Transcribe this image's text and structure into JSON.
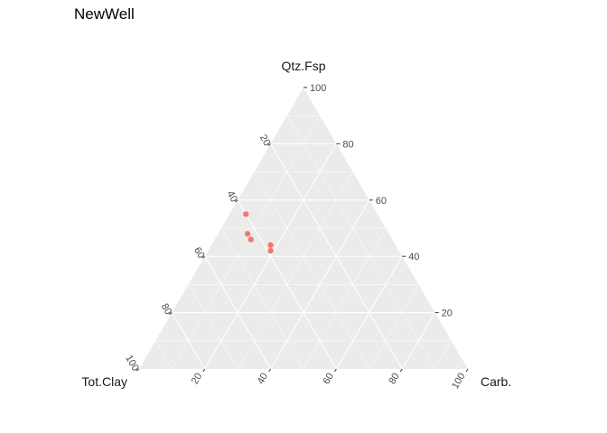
{
  "chart_data": {
    "type": "scatter",
    "subtype": "ternary",
    "title": "NewWell",
    "axes": {
      "top": "Qtz.Fsp",
      "left": "Tot.Clay",
      "right": "Carb."
    },
    "ticks": [
      20,
      40,
      60,
      80,
      100
    ],
    "grid": true,
    "panel_color": "#EBEBEB",
    "point_color": "#F8766D",
    "points": [
      {
        "qtz_fsp": 55,
        "tot_clay": 40,
        "carb": 5
      },
      {
        "qtz_fsp": 48,
        "tot_clay": 43,
        "carb": 9
      },
      {
        "qtz_fsp": 46,
        "tot_clay": 43,
        "carb": 11
      },
      {
        "qtz_fsp": 44,
        "tot_clay": 38,
        "carb": 18
      },
      {
        "qtz_fsp": 42,
        "tot_clay": 39,
        "carb": 19
      }
    ]
  }
}
